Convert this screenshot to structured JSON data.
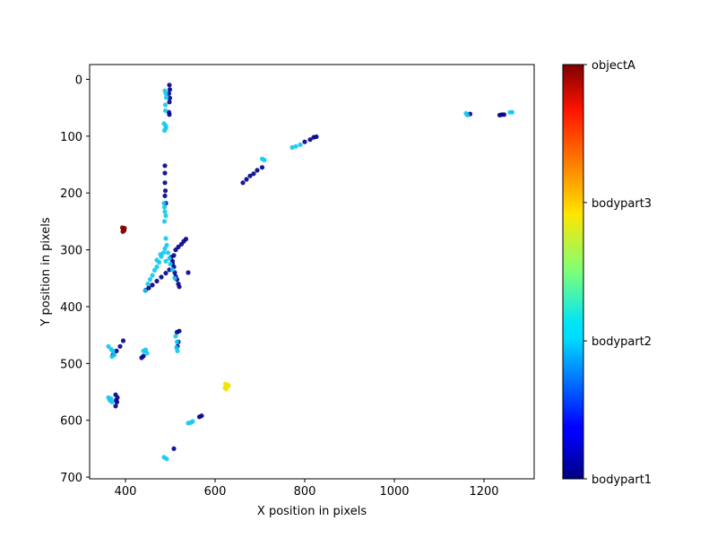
{
  "chart_data": {
    "type": "scatter",
    "title": "",
    "xlabel": "X position in pixels",
    "ylabel": "Y position in pixels",
    "xlim": [
      320,
      1312
    ],
    "ylim": [
      703,
      -26
    ],
    "y_inverted": true,
    "xticks": [
      400,
      600,
      800,
      1000,
      1200
    ],
    "yticks": [
      0,
      100,
      200,
      300,
      400,
      500,
      600,
      700
    ],
    "grid": false,
    "colormap": "jet",
    "colorbar": {
      "labels": [
        "bodypart1",
        "bodypart2",
        "bodypart3",
        "objectA"
      ],
      "positions": [
        0,
        0.333,
        0.667,
        1.0
      ]
    },
    "series": [
      {
        "name": "bodypart1",
        "color": "#00008b",
        "points": [
          [
            498,
            10
          ],
          [
            499,
            18
          ],
          [
            497,
            25
          ],
          [
            499,
            33
          ],
          [
            498,
            40
          ],
          [
            497,
            58
          ],
          [
            498,
            62
          ],
          [
            488,
            152
          ],
          [
            488,
            165
          ],
          [
            488,
            182
          ],
          [
            489,
            196
          ],
          [
            488,
            205
          ],
          [
            490,
            218
          ],
          [
            662,
            182
          ],
          [
            670,
            176
          ],
          [
            678,
            170
          ],
          [
            686,
            166
          ],
          [
            694,
            160
          ],
          [
            705,
            155
          ],
          [
            800,
            110
          ],
          [
            812,
            106
          ],
          [
            820,
            102
          ],
          [
            826,
            101
          ],
          [
            445,
            371
          ],
          [
            452,
            367
          ],
          [
            460,
            362
          ],
          [
            470,
            355
          ],
          [
            480,
            348
          ],
          [
            490,
            341
          ],
          [
            498,
            335
          ],
          [
            505,
            325
          ],
          [
            502,
            313
          ],
          [
            508,
            310
          ],
          [
            512,
            300
          ],
          [
            518,
            295
          ],
          [
            525,
            290
          ],
          [
            530,
            285
          ],
          [
            535,
            281
          ],
          [
            505,
            320
          ],
          [
            508,
            330
          ],
          [
            510,
            340
          ],
          [
            512,
            347
          ],
          [
            515,
            352
          ],
          [
            518,
            360
          ],
          [
            520,
            365
          ],
          [
            540,
            340
          ],
          [
            515,
            445
          ],
          [
            520,
            443
          ],
          [
            518,
            462
          ],
          [
            516,
            470
          ],
          [
            395,
            460
          ],
          [
            388,
            470
          ],
          [
            380,
            478
          ],
          [
            372,
            485
          ],
          [
            436,
            490
          ],
          [
            440,
            487
          ],
          [
            378,
            555
          ],
          [
            382,
            560
          ],
          [
            379,
            565
          ],
          [
            381,
            568
          ],
          [
            378,
            575
          ],
          [
            565,
            594
          ],
          [
            570,
            592
          ],
          [
            508,
            650
          ],
          [
            1235,
            63
          ],
          [
            1240,
            62
          ],
          [
            1245,
            62
          ],
          [
            1169,
            61
          ]
        ]
      },
      {
        "name": "bodypart2",
        "color": "#10c8f0",
        "points": [
          [
            488,
            20
          ],
          [
            490,
            25
          ],
          [
            491,
            32
          ],
          [
            489,
            45
          ],
          [
            489,
            55
          ],
          [
            486,
            78
          ],
          [
            490,
            82
          ],
          [
            487,
            90
          ],
          [
            490,
            86
          ],
          [
            486,
            218
          ],
          [
            487,
            225
          ],
          [
            488,
            233
          ],
          [
            490,
            240
          ],
          [
            487,
            250
          ],
          [
            490,
            280
          ],
          [
            492,
            292
          ],
          [
            488,
            298
          ],
          [
            485,
            305
          ],
          [
            480,
            312
          ],
          [
            490,
            320
          ],
          [
            475,
            322
          ],
          [
            470,
            330
          ],
          [
            465,
            336
          ],
          [
            460,
            345
          ],
          [
            455,
            352
          ],
          [
            450,
            360
          ],
          [
            444,
            372
          ],
          [
            495,
            305
          ],
          [
            498,
            315
          ],
          [
            500,
            325
          ],
          [
            505,
            335
          ],
          [
            510,
            350
          ],
          [
            478,
            308
          ],
          [
            470,
            318
          ],
          [
            512,
            452
          ],
          [
            515,
            462
          ],
          [
            514,
            472
          ],
          [
            516,
            478
          ],
          [
            362,
            470
          ],
          [
            368,
            475
          ],
          [
            372,
            478
          ],
          [
            375,
            485
          ],
          [
            370,
            488
          ],
          [
            440,
            478
          ],
          [
            445,
            476
          ],
          [
            448,
            482
          ],
          [
            362,
            560
          ],
          [
            365,
            565
          ],
          [
            370,
            568
          ],
          [
            368,
            562
          ],
          [
            540,
            605
          ],
          [
            545,
            604
          ],
          [
            550,
            602
          ],
          [
            486,
            665
          ],
          [
            492,
            668
          ],
          [
            705,
            140
          ],
          [
            710,
            142
          ],
          [
            772,
            120
          ],
          [
            780,
            118
          ],
          [
            790,
            115
          ],
          [
            1160,
            60
          ],
          [
            1163,
            63
          ],
          [
            1258,
            58
          ],
          [
            1263,
            58
          ]
        ]
      },
      {
        "name": "bodypart3",
        "color": "#f0e400",
        "points": [
          [
            623,
            536
          ],
          [
            628,
            538
          ],
          [
            626,
            541
          ],
          [
            622,
            543
          ],
          [
            630,
            539
          ],
          [
            625,
            545
          ]
        ]
      },
      {
        "name": "objectA",
        "color": "#7f0000",
        "points": [
          [
            393,
            261
          ],
          [
            398,
            262
          ],
          [
            395,
            265
          ],
          [
            397,
            266
          ],
          [
            394,
            268
          ]
        ]
      }
    ]
  }
}
